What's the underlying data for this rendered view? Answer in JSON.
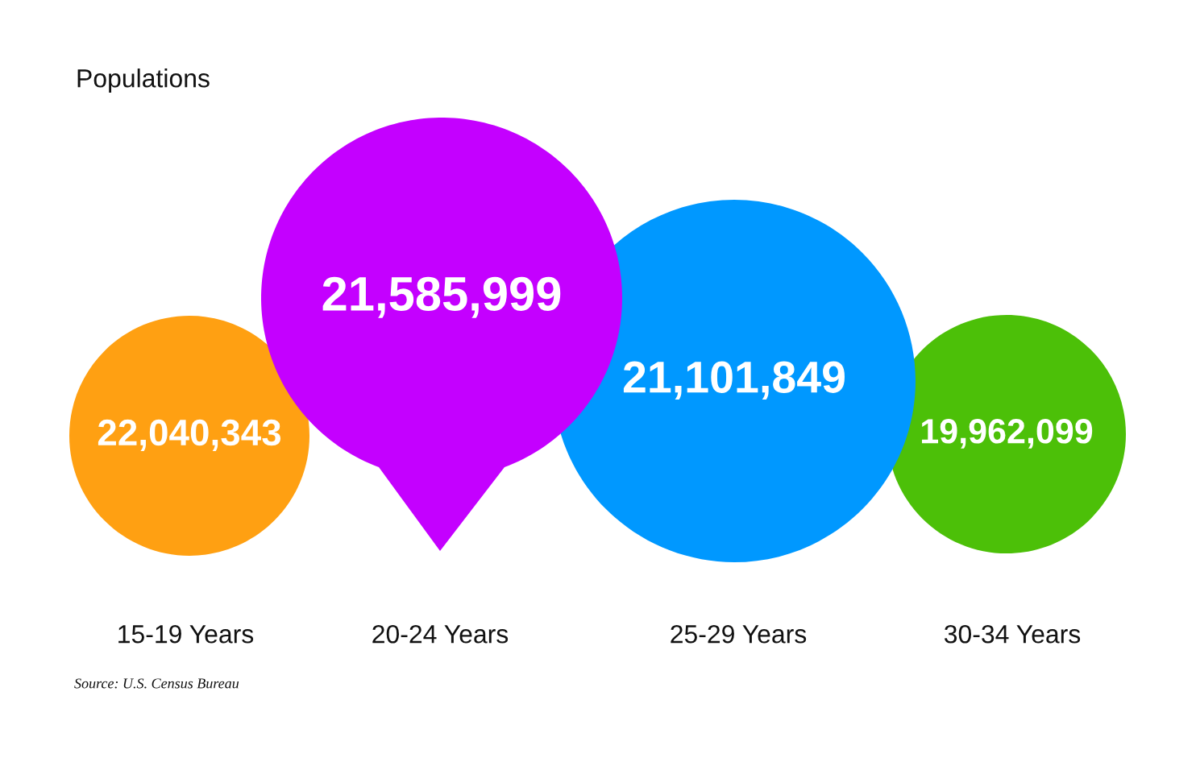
{
  "chart_data": {
    "type": "other",
    "title": "Populations",
    "categories": [
      "15-19 Years",
      "20-24 Years",
      "25-29 Years",
      "30-34 Years"
    ],
    "values": [
      22040343,
      21585999,
      21101849,
      19962099
    ],
    "value_labels": [
      "22,040,343",
      "21,585,999",
      "21,101,849",
      "19,962,099"
    ],
    "colors": [
      "#ffa012",
      "#c400ff",
      "#0098ff",
      "#4cc008"
    ],
    "annotations": [
      "Source: U.S. Census Bureau"
    ]
  }
}
